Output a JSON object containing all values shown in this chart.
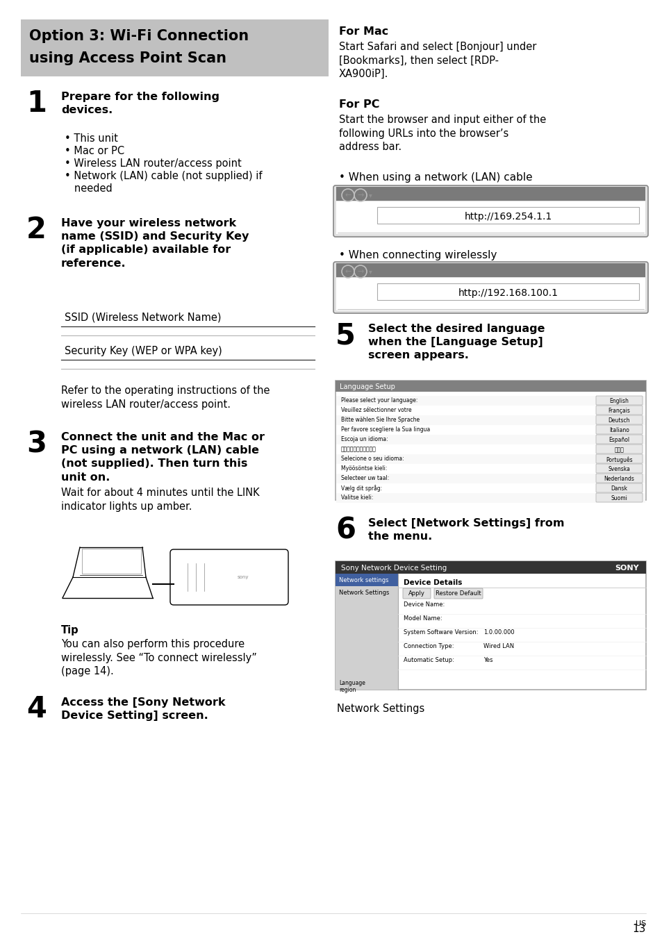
{
  "page_bg": "#ffffff",
  "header_bg": "#c0c0c0",
  "header_text_line1": "Option 3: Wi-Fi Connection",
  "header_text_line2": "using Access Point Scan",
  "text_color": "#000000",
  "step1_num": "1",
  "step1_title": "Prepare for the following\ndevices.",
  "step1_bullets": [
    "• This unit",
    "• Mac or PC",
    "• Wireless LAN router/access point",
    "• Network (LAN) cable (not supplied) if",
    "   needed"
  ],
  "step2_num": "2",
  "step2_title": "Have your wireless network\nname (SSID) and Security Key\n(if applicable) available for\nreference.",
  "ssid_label": "SSID (Wireless Network Name)",
  "security_label": "Security Key (WEP or WPA key)",
  "refer_text": "Refer to the operating instructions of the\nwireless LAN router/access point.",
  "step3_num": "3",
  "step3_title": "Connect the unit and the Mac or\nPC using a network (LAN) cable\n(not supplied). Then turn this\nunit on.",
  "step3_body": "Wait for about 4 minutes until the LINK\nindicator lights up amber.",
  "tip_title": "Tip",
  "tip_body": "You can also perform this procedure\nwirelessly. See “To connect wirelessly”\n(page 14).",
  "step4_num": "4",
  "step4_title": "Access the [Sony Network\nDevice Setting] screen.",
  "for_mac_title": "For Mac",
  "for_mac_body": "Start Safari and select [Bonjour] under\n[Bookmarks], then select [RDP-\nXA900iP].",
  "for_pc_title": "For PC",
  "for_pc_body": "Start the browser and input either of the\nfollowing URLs into the browser’s\naddress bar.",
  "lan_label": "• When using a network (LAN) cable",
  "url1": "http://169.254.1.1",
  "wireless_label": "• When connecting wirelessly",
  "url2": "http://192.168.100.1",
  "step5_num": "5",
  "step5_title": "Select the desired language\nwhen the [Language Setup]\nscreen appears.",
  "step6_num": "6",
  "step6_title": "Select [Network Settings] from\nthe menu.",
  "network_settings_label": "Network Settings",
  "page_num": "13",
  "page_num_sup": "US",
  "lang_rows_left": [
    "Please select your language:",
    "Veuillez sélectionner votre",
    "Bitte wählen Sie Ihre Sprache",
    "Per favore scegliere la Sua lingua",
    "Escoja un idioma:",
    "日本語、中文、韓国語：",
    "Selecione o seu idioma:",
    "Myöösöntse kieli:",
    "Selecteer uw taal:",
    "Vælg dit språg:",
    "Valitse kieli:"
  ],
  "lang_rows_right": [
    "English",
    "Français",
    "Deutsch",
    "Italiano",
    "Español",
    "日本語",
    "Português",
    "Svenska",
    "Nederlands",
    "Dansk",
    "Suomi"
  ],
  "sony_content_rows": [
    [
      "Device Name:",
      ""
    ],
    [
      "Model Name:",
      ""
    ],
    [
      "System Software Version:",
      "1.0.00.000"
    ],
    [
      "Connection Type:",
      "Wired LAN"
    ],
    [
      "Automatic Setup:",
      "Yes"
    ]
  ],
  "browser_gray": "#7a7a7a",
  "browser_light_gray": "#e8e8e8"
}
